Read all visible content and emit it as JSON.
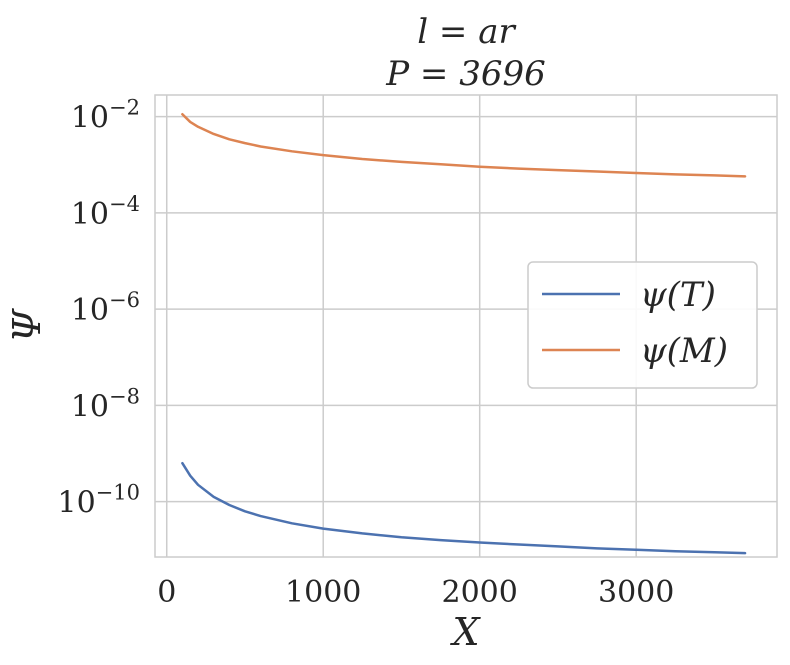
{
  "chart_data": {
    "type": "line",
    "title_line1": "l = ar",
    "title_line2": "P = 3696",
    "xlabel": "X",
    "ylabel": "Ψ",
    "xscale": "linear",
    "yscale": "log",
    "xlim": [
      -75,
      3900
    ],
    "ylim_log10": [
      -11.15,
      -1.55
    ],
    "grid": true,
    "legend_position": "center-right",
    "x_ticks": [
      {
        "value": 0,
        "label": "0"
      },
      {
        "value": 1000,
        "label": "1000"
      },
      {
        "value": 2000,
        "label": "2000"
      },
      {
        "value": 3000,
        "label": "3000"
      }
    ],
    "y_ticks": [
      {
        "exp": -2,
        "base": "10",
        "sup": "−2"
      },
      {
        "exp": -4,
        "base": "10",
        "sup": "−4"
      },
      {
        "exp": -6,
        "base": "10",
        "sup": "−6"
      },
      {
        "exp": -8,
        "base": "10",
        "sup": "−8"
      },
      {
        "exp": -10,
        "base": "10",
        "sup": "−10"
      }
    ],
    "x": [
      100,
      150,
      200,
      300,
      400,
      500,
      600,
      800,
      1000,
      1250,
      1500,
      1750,
      2000,
      2250,
      2500,
      2750,
      3000,
      3250,
      3500,
      3696
    ],
    "series": [
      {
        "name": "ψ(T)",
        "legend_label": "ψ(T)",
        "color": "#4c72b0",
        "log10_values": [
          -9.2,
          -9.46,
          -9.65,
          -9.9,
          -10.07,
          -10.2,
          -10.3,
          -10.45,
          -10.56,
          -10.66,
          -10.74,
          -10.8,
          -10.85,
          -10.89,
          -10.93,
          -10.97,
          -11.0,
          -11.03,
          -11.05,
          -11.07
        ]
      },
      {
        "name": "ψ(M)",
        "legend_label": "ψ(M)",
        "color": "#dd8452",
        "log10_values": [
          -1.95,
          -2.11,
          -2.21,
          -2.36,
          -2.47,
          -2.55,
          -2.62,
          -2.72,
          -2.8,
          -2.88,
          -2.94,
          -2.99,
          -3.04,
          -3.08,
          -3.11,
          -3.14,
          -3.17,
          -3.2,
          -3.22,
          -3.24
        ]
      }
    ]
  }
}
